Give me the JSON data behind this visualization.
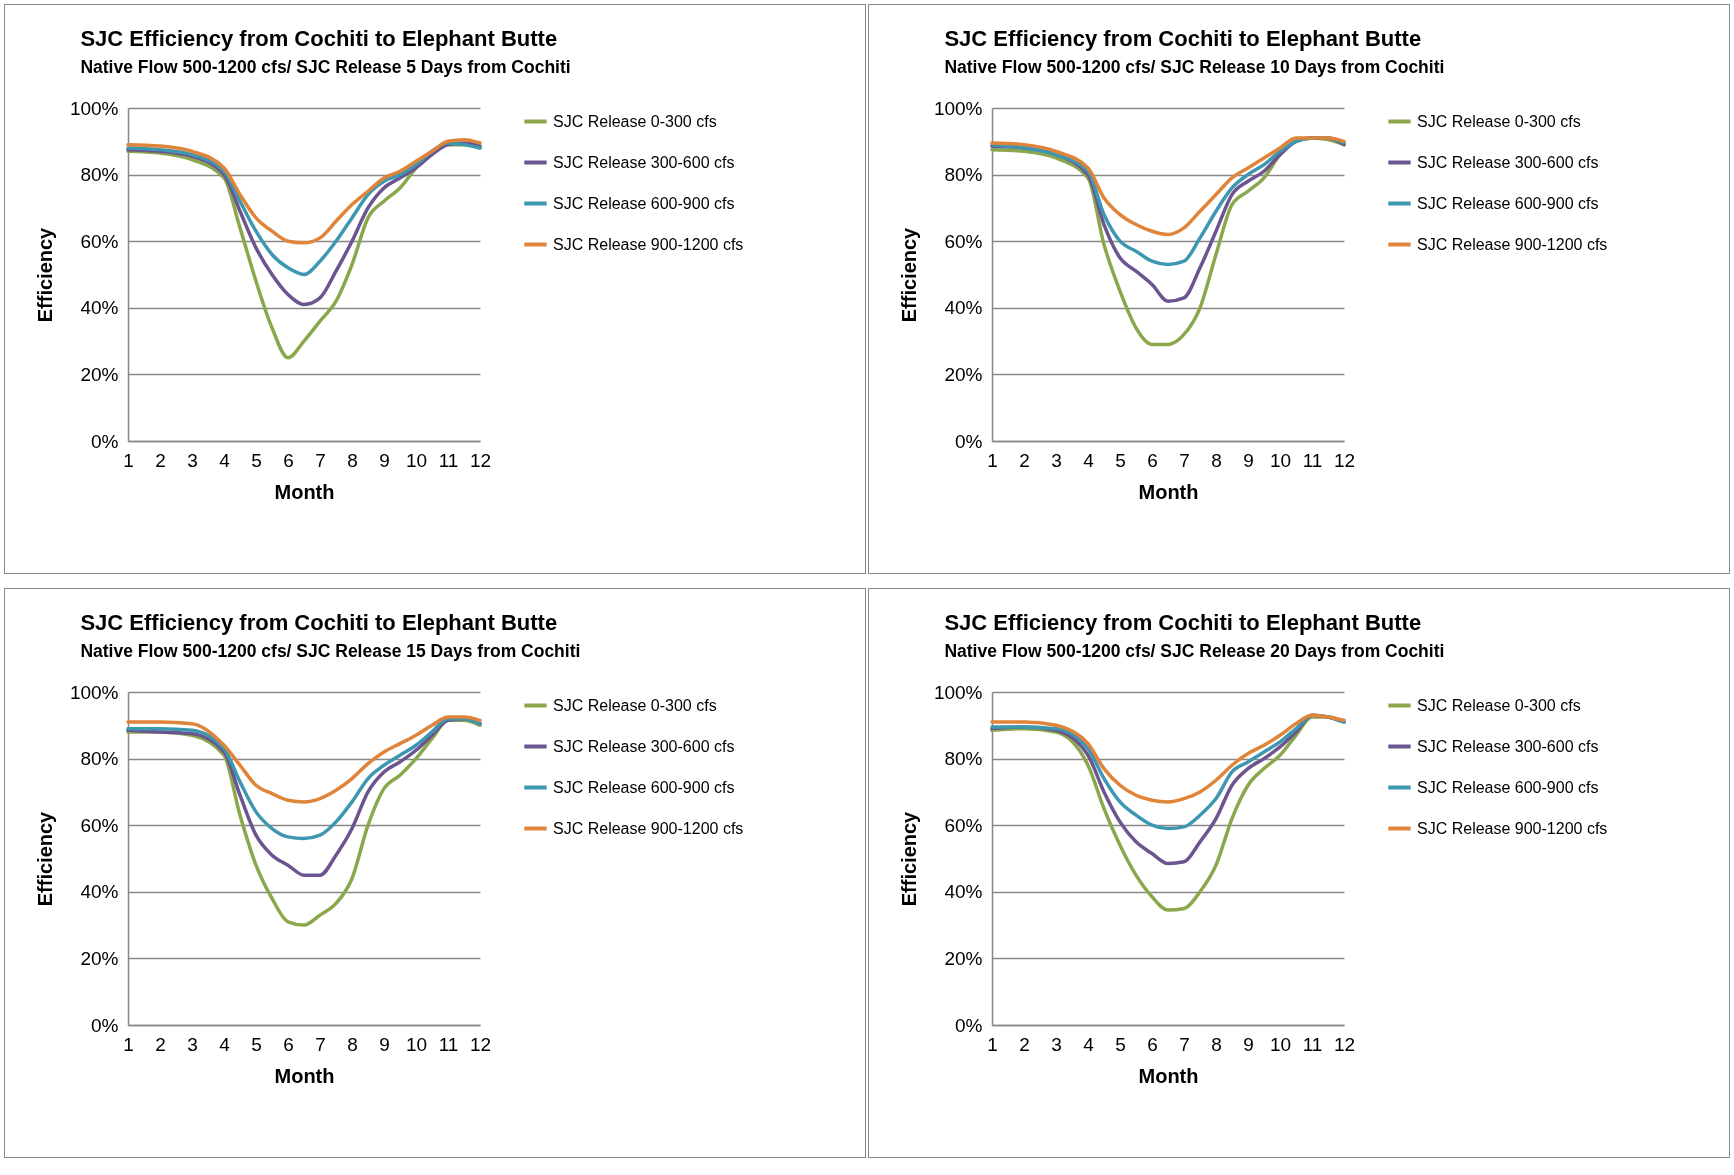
{
  "chart_data": [
    {
      "type": "line",
      "title": "SJC Efficiency from Cochiti to Elephant Butte",
      "subtitle": "Native Flow 500-1200 cfs/ SJC Release 5 Days from Cochiti",
      "xlabel": "Month",
      "ylabel": "Efficiency",
      "x": [
        1,
        2,
        3,
        4,
        4.5,
        5,
        5.5,
        6,
        6.5,
        7,
        7.5,
        8,
        8.5,
        9,
        9.5,
        10,
        10.5,
        11,
        11.5,
        12
      ],
      "xlim": [
        1,
        12
      ],
      "xticks": [
        1,
        2,
        3,
        4,
        5,
        6,
        7,
        8,
        9,
        10,
        11,
        12
      ],
      "ylim": [
        0,
        100
      ],
      "yticks": [
        {
          "value": 0,
          "label": "0%"
        },
        {
          "value": 20,
          "label": "20%"
        },
        {
          "value": 40,
          "label": "40%"
        },
        {
          "value": 60,
          "label": "60%"
        },
        {
          "value": 80,
          "label": "80%"
        },
        {
          "value": 100,
          "label": "100%"
        }
      ],
      "grid": "y",
      "legend": "right",
      "series": [
        {
          "name": "SJC Release 0-300 cfs",
          "color": "#8aa84b",
          "values": [
            87,
            86.5,
            84.5,
            79,
            64,
            48,
            34,
            25,
            30,
            36,
            42,
            53,
            67,
            72,
            76,
            82,
            87,
            89,
            89,
            88
          ]
        },
        {
          "name": "SJC Release 300-600 cfs",
          "color": "#6b548f",
          "values": [
            87.5,
            87,
            85.5,
            80,
            69,
            58,
            50,
            44,
            41,
            43,
            51,
            60,
            70,
            76,
            79,
            82,
            86,
            89,
            89.5,
            88.6
          ]
        },
        {
          "name": "SJC Release 600-900 cfs",
          "color": "#3e97b1",
          "values": [
            88,
            87.5,
            86,
            81,
            72,
            63,
            56,
            52,
            50,
            54,
            60,
            67,
            74,
            78,
            80,
            83,
            87,
            89.5,
            89,
            88
          ]
        },
        {
          "name": "SJC Release 900-1200 cfs",
          "color": "#e0843a",
          "values": [
            89,
            88.6,
            87,
            82,
            74,
            67,
            63,
            60,
            59.5,
            61,
            66,
            71,
            75,
            79,
            81,
            84,
            87,
            90,
            90.5,
            89.5
          ]
        }
      ]
    },
    {
      "type": "line",
      "title": "SJC Efficiency from Cochiti to Elephant Butte",
      "subtitle": "Native Flow 500-1200 cfs/ SJC Release 10 Days from Cochiti",
      "xlabel": "Month",
      "ylabel": "Efficiency",
      "x": [
        1,
        2,
        3,
        4,
        4.5,
        5,
        5.5,
        6,
        6.5,
        7,
        7.5,
        8,
        8.5,
        9,
        9.5,
        10,
        10.5,
        11,
        11.5,
        12
      ],
      "xlim": [
        1,
        12
      ],
      "xticks": [
        1,
        2,
        3,
        4,
        5,
        6,
        7,
        8,
        9,
        10,
        11,
        12
      ],
      "ylim": [
        0,
        100
      ],
      "yticks": [
        {
          "value": 0,
          "label": "0%"
        },
        {
          "value": 20,
          "label": "20%"
        },
        {
          "value": 40,
          "label": "40%"
        },
        {
          "value": 60,
          "label": "60%"
        },
        {
          "value": 80,
          "label": "80%"
        },
        {
          "value": 100,
          "label": "100%"
        }
      ],
      "grid": "y",
      "legend": "right",
      "series": [
        {
          "name": "SJC Release 0-300 cfs",
          "color": "#8aa84b",
          "values": [
            87.5,
            87,
            85,
            79,
            59,
            45,
            34,
            29,
            29,
            32,
            40,
            56,
            71,
            75,
            79,
            86,
            90,
            91,
            90.5,
            89
          ]
        },
        {
          "name": "SJC Release 300-600 cfs",
          "color": "#6b548f",
          "values": [
            88.5,
            88,
            86,
            80,
            65,
            55,
            51,
            47,
            42,
            43,
            52,
            63,
            74,
            78,
            81,
            86,
            90,
            91,
            91,
            89
          ]
        },
        {
          "name": "SJC Release 600-900 cfs",
          "color": "#3e97b1",
          "values": [
            89,
            88,
            86,
            81,
            68,
            60,
            57,
            54,
            53,
            54,
            61,
            69,
            76,
            80,
            83,
            87,
            90,
            91,
            91,
            89.5
          ]
        },
        {
          "name": "SJC Release 900-1200 cfs",
          "color": "#e0843a",
          "values": [
            89.5,
            89,
            87,
            82,
            73,
            68,
            65,
            63,
            62,
            64,
            69,
            74,
            79,
            82,
            85,
            88,
            91,
            91,
            91,
            90
          ]
        }
      ]
    },
    {
      "type": "line",
      "title": "SJC Efficiency from Cochiti to Elephant Butte",
      "subtitle": "Native Flow 500-1200 cfs/ SJC Release 15 Days from Cochiti",
      "xlabel": "Month",
      "ylabel": "Efficiency",
      "x": [
        1,
        2,
        3,
        4,
        4.5,
        5,
        5.5,
        6,
        6.5,
        7,
        7.5,
        8,
        8.5,
        9,
        9.5,
        10,
        10.5,
        11,
        11.5,
        12
      ],
      "xlim": [
        1,
        12
      ],
      "xticks": [
        1,
        2,
        3,
        4,
        5,
        6,
        7,
        8,
        9,
        10,
        11,
        12
      ],
      "ylim": [
        0,
        100
      ],
      "yticks": [
        {
          "value": 0,
          "label": "0%"
        },
        {
          "value": 20,
          "label": "20%"
        },
        {
          "value": 40,
          "label": "40%"
        },
        {
          "value": 60,
          "label": "60%"
        },
        {
          "value": 80,
          "label": "80%"
        },
        {
          "value": 100,
          "label": "100%"
        }
      ],
      "grid": "y",
      "legend": "right",
      "series": [
        {
          "name": "SJC Release 0-300 cfs",
          "color": "#8aa84b",
          "values": [
            88,
            88,
            87,
            81,
            63,
            48,
            38,
            31,
            30,
            33,
            36.5,
            44,
            60,
            71,
            75,
            80,
            86,
            91.5,
            91.5,
            90
          ]
        },
        {
          "name": "SJC Release 300-600 cfs",
          "color": "#6b548f",
          "values": [
            88.5,
            88,
            87.5,
            82,
            69,
            57,
            51,
            48,
            45,
            45,
            51,
            59,
            70,
            76,
            79,
            82.5,
            87,
            91.5,
            92,
            90.5
          ]
        },
        {
          "name": "SJC Release 600-900 cfs",
          "color": "#3e97b1",
          "values": [
            89,
            89,
            88.5,
            83,
            73,
            64,
            59,
            56.5,
            56,
            57,
            61,
            67,
            74,
            78,
            81,
            84,
            88,
            92,
            92,
            90.5
          ]
        },
        {
          "name": "SJC Release 900-1200 cfs",
          "color": "#e0843a",
          "values": [
            91,
            91,
            90.5,
            84,
            78,
            72,
            69.5,
            67.5,
            67,
            68,
            70.5,
            74,
            78.5,
            82,
            84.5,
            87,
            90,
            92.5,
            92.5,
            91.5
          ]
        }
      ]
    },
    {
      "type": "line",
      "title": "SJC Efficiency from Cochiti to Elephant Butte",
      "subtitle": "Native Flow 500-1200 cfs/ SJC Release 20 Days from Cochiti",
      "xlabel": "Month",
      "ylabel": "Efficiency",
      "x": [
        1,
        2,
        3,
        4,
        4.5,
        5,
        5.5,
        6,
        6.5,
        7,
        7.5,
        8,
        8.5,
        9,
        9.5,
        10,
        10.5,
        11,
        11.5,
        12
      ],
      "xlim": [
        1,
        12
      ],
      "xticks": [
        1,
        2,
        3,
        4,
        5,
        6,
        7,
        8,
        9,
        10,
        11,
        12
      ],
      "ylim": [
        0,
        100
      ],
      "yticks": [
        {
          "value": 0,
          "label": "0%"
        },
        {
          "value": 20,
          "label": "20%"
        },
        {
          "value": 40,
          "label": "40%"
        },
        {
          "value": 60,
          "label": "60%"
        },
        {
          "value": 80,
          "label": "80%"
        },
        {
          "value": 100,
          "label": "100%"
        }
      ],
      "grid": "y",
      "legend": "right",
      "series": [
        {
          "name": "SJC Release 0-300 cfs",
          "color": "#8aa84b",
          "values": [
            88.5,
            89,
            88,
            78,
            65,
            54,
            45,
            38.5,
            34.5,
            35,
            40,
            48,
            62,
            72,
            77,
            81,
            87,
            92.5,
            92.5,
            91
          ]
        },
        {
          "name": "SJC Release 300-600 cfs",
          "color": "#6b548f",
          "values": [
            89,
            89.5,
            88.5,
            81,
            70,
            61,
            55,
            51.5,
            48.5,
            49,
            55,
            62,
            72,
            77,
            80,
            83.5,
            88,
            93,
            92.5,
            91
          ]
        },
        {
          "name": "SJC Release 600-900 cfs",
          "color": "#3e97b1",
          "values": [
            89.5,
            89.5,
            89,
            83,
            74,
            67,
            63,
            60,
            59,
            59.5,
            63,
            68,
            76,
            79,
            82,
            85,
            89,
            93,
            92.5,
            91
          ]
        },
        {
          "name": "SJC Release 900-1200 cfs",
          "color": "#e0843a",
          "values": [
            91,
            91,
            90,
            84.5,
            77,
            72,
            69,
            67.5,
            67,
            68,
            70,
            73.5,
            78,
            81.5,
            84,
            87,
            90.5,
            93,
            92.5,
            91.5
          ]
        }
      ]
    }
  ]
}
